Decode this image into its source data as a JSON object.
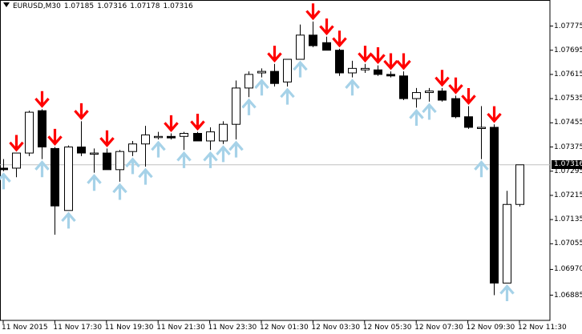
{
  "header": {
    "symbol": "EURUSD,M30",
    "open": "1.07185",
    "high": "1.07316",
    "low": "1.07178",
    "close": "1.07316"
  },
  "current_price": "1.07316",
  "colors": {
    "background": "#ffffff",
    "bull_body": "#ffffff",
    "bear_body": "#000000",
    "candle_outline": "#000000",
    "sell_arrow": "#ff0000",
    "buy_arrow": "#a6d2e8",
    "price_line": "#c0c0c0",
    "price_box": "#000000"
  },
  "chart_data": {
    "type": "candlestick",
    "y_ticks": [
      "1.07775",
      "1.07695",
      "1.07615",
      "1.07535",
      "1.07455",
      "1.07375",
      "1.07295",
      "1.07215",
      "1.07135",
      "1.07055",
      "1.06970",
      "1.06885"
    ],
    "x_ticks": [
      "11 Nov 2015",
      "11 Nov 17:30",
      "11 Nov 19:30",
      "11 Nov 21:30",
      "11 Nov 23:30",
      "12 Nov 01:30",
      "12 Nov 03:30",
      "12 Nov 05:30",
      "12 Nov 07:30",
      "12 Nov 09:30",
      "12 Nov 11:30"
    ],
    "ylim": [
      1.0688,
      1.0785
    ],
    "candles": [
      {
        "o": 1.07305,
        "h": 1.07335,
        "l": 1.07295,
        "c": 1.073,
        "up": "yes"
      },
      {
        "o": 1.07305,
        "h": 1.07355,
        "l": 1.07275,
        "c": 1.07355,
        "sell": "yes"
      },
      {
        "o": 1.07355,
        "h": 1.07495,
        "l": 1.07345,
        "c": 1.0749
      },
      {
        "o": 1.07495,
        "h": 1.075,
        "l": 1.07335,
        "c": 1.07375,
        "sell": "yes",
        "up": "yes"
      },
      {
        "o": 1.0737,
        "h": 1.07375,
        "l": 1.07085,
        "c": 1.0718,
        "sell": "yes"
      },
      {
        "o": 1.07165,
        "h": 1.0738,
        "l": 1.07165,
        "c": 1.07375,
        "up": "yes"
      },
      {
        "o": 1.07375,
        "h": 1.0746,
        "l": 1.07345,
        "c": 1.07355,
        "sell": "yes"
      },
      {
        "o": 1.07355,
        "h": 1.0737,
        "l": 1.0729,
        "c": 1.07355,
        "up": "yes"
      },
      {
        "o": 1.07355,
        "h": 1.0737,
        "l": 1.073,
        "c": 1.073,
        "sell": "yes"
      },
      {
        "o": 1.073,
        "h": 1.07365,
        "l": 1.0726,
        "c": 1.0736,
        "up": "yes"
      },
      {
        "o": 1.0736,
        "h": 1.07395,
        "l": 1.07345,
        "c": 1.07385,
        "up": "yes"
      },
      {
        "o": 1.07385,
        "h": 1.07445,
        "l": 1.0731,
        "c": 1.07415,
        "up": "yes"
      },
      {
        "o": 1.0741,
        "h": 1.07425,
        "l": 1.074,
        "c": 1.0741,
        "up": "yes"
      },
      {
        "o": 1.0741,
        "h": 1.0742,
        "l": 1.074,
        "c": 1.07405,
        "sell": "yes"
      },
      {
        "o": 1.0741,
        "h": 1.07425,
        "l": 1.07365,
        "c": 1.0742,
        "up": "yes"
      },
      {
        "o": 1.0742,
        "h": 1.07425,
        "l": 1.07395,
        "c": 1.07395,
        "sell": "yes"
      },
      {
        "o": 1.07395,
        "h": 1.0744,
        "l": 1.07365,
        "c": 1.07425,
        "up": "yes"
      },
      {
        "o": 1.07395,
        "h": 1.0746,
        "l": 1.07385,
        "c": 1.0745,
        "up": "yes"
      },
      {
        "o": 1.0745,
        "h": 1.07595,
        "l": 1.074,
        "c": 1.0757,
        "up": "yes"
      },
      {
        "o": 1.0757,
        "h": 1.07625,
        "l": 1.0754,
        "c": 1.07615,
        "up": "yes"
      },
      {
        "o": 1.0762,
        "h": 1.07635,
        "l": 1.07605,
        "c": 1.07625,
        "up": "yes"
      },
      {
        "o": 1.07625,
        "h": 1.0765,
        "l": 1.07575,
        "c": 1.07585,
        "sell": "yes"
      },
      {
        "o": 1.0759,
        "h": 1.07665,
        "l": 1.07575,
        "c": 1.07665,
        "up": "yes"
      },
      {
        "o": 1.07665,
        "h": 1.0778,
        "l": 1.07665,
        "c": 1.07745,
        "up": "yes"
      },
      {
        "o": 1.07745,
        "h": 1.0779,
        "l": 1.07705,
        "c": 1.0771,
        "sell": "yes"
      },
      {
        "o": 1.0772,
        "h": 1.0774,
        "l": 1.07695,
        "c": 1.07695,
        "sell": "yes"
      },
      {
        "o": 1.07695,
        "h": 1.077,
        "l": 1.0761,
        "c": 1.0762,
        "sell": "yes"
      },
      {
        "o": 1.0762,
        "h": 1.0766,
        "l": 1.07605,
        "c": 1.07635,
        "up": "yes"
      },
      {
        "o": 1.0763,
        "h": 1.0765,
        "l": 1.0762,
        "c": 1.07635,
        "sell": "yes"
      },
      {
        "o": 1.0763,
        "h": 1.07645,
        "l": 1.0761,
        "c": 1.07615,
        "sell": "yes"
      },
      {
        "o": 1.07615,
        "h": 1.07625,
        "l": 1.07605,
        "c": 1.0761,
        "sell": "yes"
      },
      {
        "o": 1.0761,
        "h": 1.07625,
        "l": 1.0753,
        "c": 1.07535,
        "sell": "yes"
      },
      {
        "o": 1.07535,
        "h": 1.0757,
        "l": 1.07505,
        "c": 1.07555,
        "up": "yes"
      },
      {
        "o": 1.07555,
        "h": 1.0757,
        "l": 1.07525,
        "c": 1.0756,
        "up": "yes"
      },
      {
        "o": 1.0756,
        "h": 1.0757,
        "l": 1.07525,
        "c": 1.0753,
        "sell": "yes"
      },
      {
        "o": 1.07535,
        "h": 1.07545,
        "l": 1.0747,
        "c": 1.07475,
        "sell": "yes"
      },
      {
        "o": 1.07475,
        "h": 1.0751,
        "l": 1.07435,
        "c": 1.0744,
        "sell": "yes"
      },
      {
        "o": 1.0744,
        "h": 1.0751,
        "l": 1.07335,
        "c": 1.0744,
        "up": "yes"
      },
      {
        "o": 1.0744,
        "h": 1.0745,
        "l": 1.06885,
        "c": 1.06925,
        "sell": "yes"
      },
      {
        "o": 1.06925,
        "h": 1.0723,
        "l": 1.06925,
        "c": 1.07185,
        "up": "yes"
      },
      {
        "o": 1.07185,
        "h": 1.07316,
        "l": 1.07178,
        "c": 1.07316
      }
    ]
  }
}
